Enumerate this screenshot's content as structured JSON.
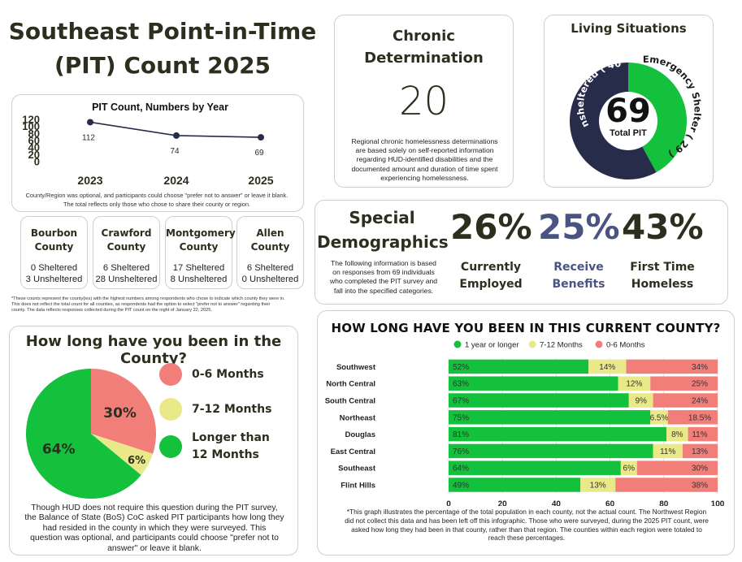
{
  "title": {
    "line1": "Southeast Point-in-Time",
    "line2": "(PIT) Count 2025"
  },
  "colors": {
    "olive": "#2b2f1e",
    "navy": "#262c4a",
    "green": "#13c13d",
    "yellow": "#e9e98a",
    "salmon": "#f27e7a",
    "blue": "#4a5483"
  },
  "chronic": {
    "title_line1": "Chronic",
    "title_line2": "Determination",
    "value": "20",
    "note_lines": [
      "Regional chronic homelessness determinations",
      "are based solely on self-reported information",
      "regarding HUD-identified disabilities and the",
      "documented amount and duration of time spent",
      "experiencing homelessness."
    ]
  },
  "living": {
    "title": "Living Situations",
    "total": "69",
    "total_label": "Total PIT",
    "chart_data": {
      "type": "pie",
      "title": "Living Situations",
      "slices": [
        {
          "label": "Emergency Shelter",
          "value": 29,
          "display": "Emergency Shelter ( 29 )",
          "color": "#13c13d"
        },
        {
          "label": "Unsheltered",
          "value": 40,
          "display": "Unsheltered ( 40 )",
          "color": "#262c4a"
        }
      ]
    }
  },
  "pit": {
    "chart_data": {
      "type": "line",
      "title": "PIT Count, Numbers by Year",
      "x": [
        "2023",
        "2024",
        "2025"
      ],
      "values": [
        112,
        74,
        69
      ],
      "labels": [
        "112",
        "74",
        "69"
      ],
      "yticks": [
        "0",
        "20",
        "40",
        "60",
        "80",
        "100",
        "120"
      ],
      "ylim": [
        0,
        120
      ]
    },
    "note_line1": "County/Region was optional, and participants could choose \"prefer not to answer\" or leave it blank.",
    "note_line2": "The total reflects only those who chose to share their county or region."
  },
  "counties": [
    {
      "name_line1": "Bourbon",
      "name_line2": "County",
      "sheltered": "0 Sheltered",
      "unsheltered": "3 Unsheltered"
    },
    {
      "name_line1": "Crawford",
      "name_line2": "County",
      "sheltered": "6 Sheltered",
      "unsheltered": "28 Unsheltered"
    },
    {
      "name_line1": "Montgomery",
      "name_line2": "County",
      "sheltered": "17 Sheltered",
      "unsheltered": "8 Unsheltered"
    },
    {
      "name_line1": "Allen",
      "name_line2": "County",
      "sheltered": "6 Sheltered",
      "unsheltered": "0 Unsheltered"
    }
  ],
  "county_note": {
    "line1": "*These counts represent the county(ies) with the highest numbers among respondents who chose to indicate which county they were in.",
    "line2": "This does not reflect the total count for all counties, as respondents had the option to select \"prefer not to answer\" regarding their",
    "line3": "county. The data reflects responses collected during the PIT count on the night of January 22, 2025."
  },
  "special": {
    "title_line1": "Special",
    "title_line2": "Demographics",
    "note_lines": [
      "The following information is based",
      "on responses from 69 individuals",
      "who completed the PIT survey and",
      "fall into the specified categories."
    ],
    "stats": [
      {
        "value": "26%",
        "label_line1": "Currently",
        "label_line2": "Employed"
      },
      {
        "value": "25%",
        "label_line1": "Receive",
        "label_line2": "Benefits"
      },
      {
        "value": "43%",
        "label_line1": "First Time",
        "label_line2": "Homeless"
      }
    ]
  },
  "duration": {
    "title": "How long have you been in the County?",
    "chart_data": {
      "type": "pie",
      "title": "How long have you been in the County?",
      "slices": [
        {
          "label": "0-6 Months",
          "value": 30,
          "display": "30%",
          "color": "#f27e7a"
        },
        {
          "label": "7-12 Months",
          "value": 6,
          "display": "6%",
          "color": "#e9e98a"
        },
        {
          "label": "Longer than 12 Months",
          "value": 64,
          "display": "64%",
          "color": "#13c13d"
        }
      ]
    },
    "legend": [
      {
        "line1": "0-6 Months",
        "line2": ""
      },
      {
        "line1": "7-12 Months",
        "line2": ""
      },
      {
        "line1": "Longer than",
        "line2": "12 Months"
      }
    ],
    "note_lines": [
      "Though HUD does not require this question during the PIT survey,",
      "the Balance of State (BoS) CoC asked PIT participants how long they",
      "had resided in the county in which they were surveyed. This",
      "question was optional, and participants could choose \"prefer not to",
      "answer\" or leave it blank."
    ]
  },
  "region": {
    "chart_data": {
      "type": "bar",
      "orientation": "horizontal",
      "stacked": true,
      "title": "HOW LONG HAVE YOU BEEN IN THIS CURRENT COUNTY?",
      "categories": [
        "Southwest",
        "North Central",
        "South Central",
        "Northeast",
        "Douglas",
        "East Central",
        "Southeast",
        "Flint Hills"
      ],
      "series": [
        {
          "name": "1 year or longer",
          "color": "#13c13d",
          "values": [
            52,
            63,
            67,
            75,
            81,
            76,
            64,
            49
          ],
          "labels": [
            "52%",
            "63%",
            "67%",
            "75%",
            "81%",
            "76%",
            "64%",
            "49%"
          ]
        },
        {
          "name": "7-12 Months",
          "color": "#e9e98a",
          "values": [
            14,
            12,
            9,
            6.5,
            8,
            11,
            6,
            13
          ],
          "labels": [
            "14%",
            "12%",
            "9%",
            "6.5%",
            "8%",
            "11%",
            "6%",
            "13%"
          ]
        },
        {
          "name": "0-6 Months",
          "color": "#f27e7a",
          "values": [
            34,
            25,
            24,
            18.5,
            11,
            13,
            30,
            38
          ],
          "labels": [
            "34%",
            "25%",
            "24%",
            "18.5%",
            "11%",
            "13%",
            "30%",
            "38%"
          ]
        }
      ],
      "xticks": [
        "0",
        "20",
        "40",
        "60",
        "80",
        "100"
      ],
      "xlim": [
        0,
        100
      ],
      "legend": "top"
    },
    "note_lines": [
      "*This graph illustrates the percentage of the total population in each county, not the actual count. The Northwest Region",
      "did not collect this data and has been left off this infographic. Those who were surveyed, during the 2025 PIT count, were",
      "asked how long they had been in that county, rather than that region. The counties within each region were totaled to",
      "reach these percentages."
    ]
  }
}
